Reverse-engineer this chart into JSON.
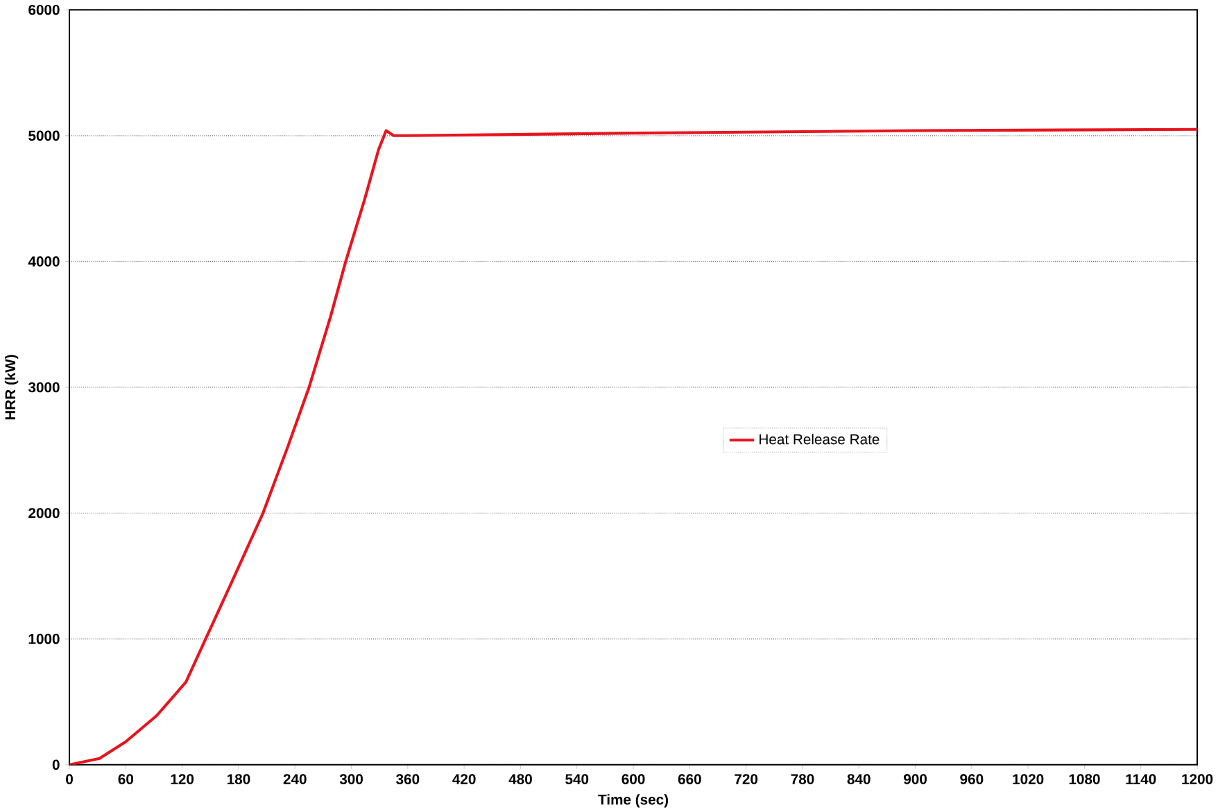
{
  "chart_data": {
    "type": "line",
    "xlabel": "Time (sec)",
    "ylabel": "HRR (kW)",
    "x": [
      0,
      32,
      60,
      93,
      124,
      145,
      173,
      206,
      232,
      255,
      278,
      294,
      314,
      329,
      337,
      345,
      360,
      600,
      900,
      1200
    ],
    "series": [
      {
        "name": "Heat Release Rate",
        "color": "#e8141e",
        "values": [
          0,
          50,
          183,
          391,
          657,
          1000,
          1456,
          2000,
          2520,
          3000,
          3565,
          4000,
          4490,
          4890,
          5040,
          5000,
          5000,
          5020,
          5040,
          5050
        ]
      }
    ],
    "xlim": [
      0,
      1200
    ],
    "xticks": [
      0,
      60,
      120,
      180,
      240,
      300,
      360,
      420,
      480,
      540,
      600,
      660,
      720,
      780,
      840,
      900,
      960,
      1020,
      1080,
      1140,
      1200
    ],
    "ylim": [
      0,
      6000
    ],
    "yticks": [
      0,
      1000,
      2000,
      3000,
      4000,
      5000,
      6000
    ],
    "grid": "y",
    "legend": "right",
    "marker": "none",
    "line_style": "solid"
  }
}
